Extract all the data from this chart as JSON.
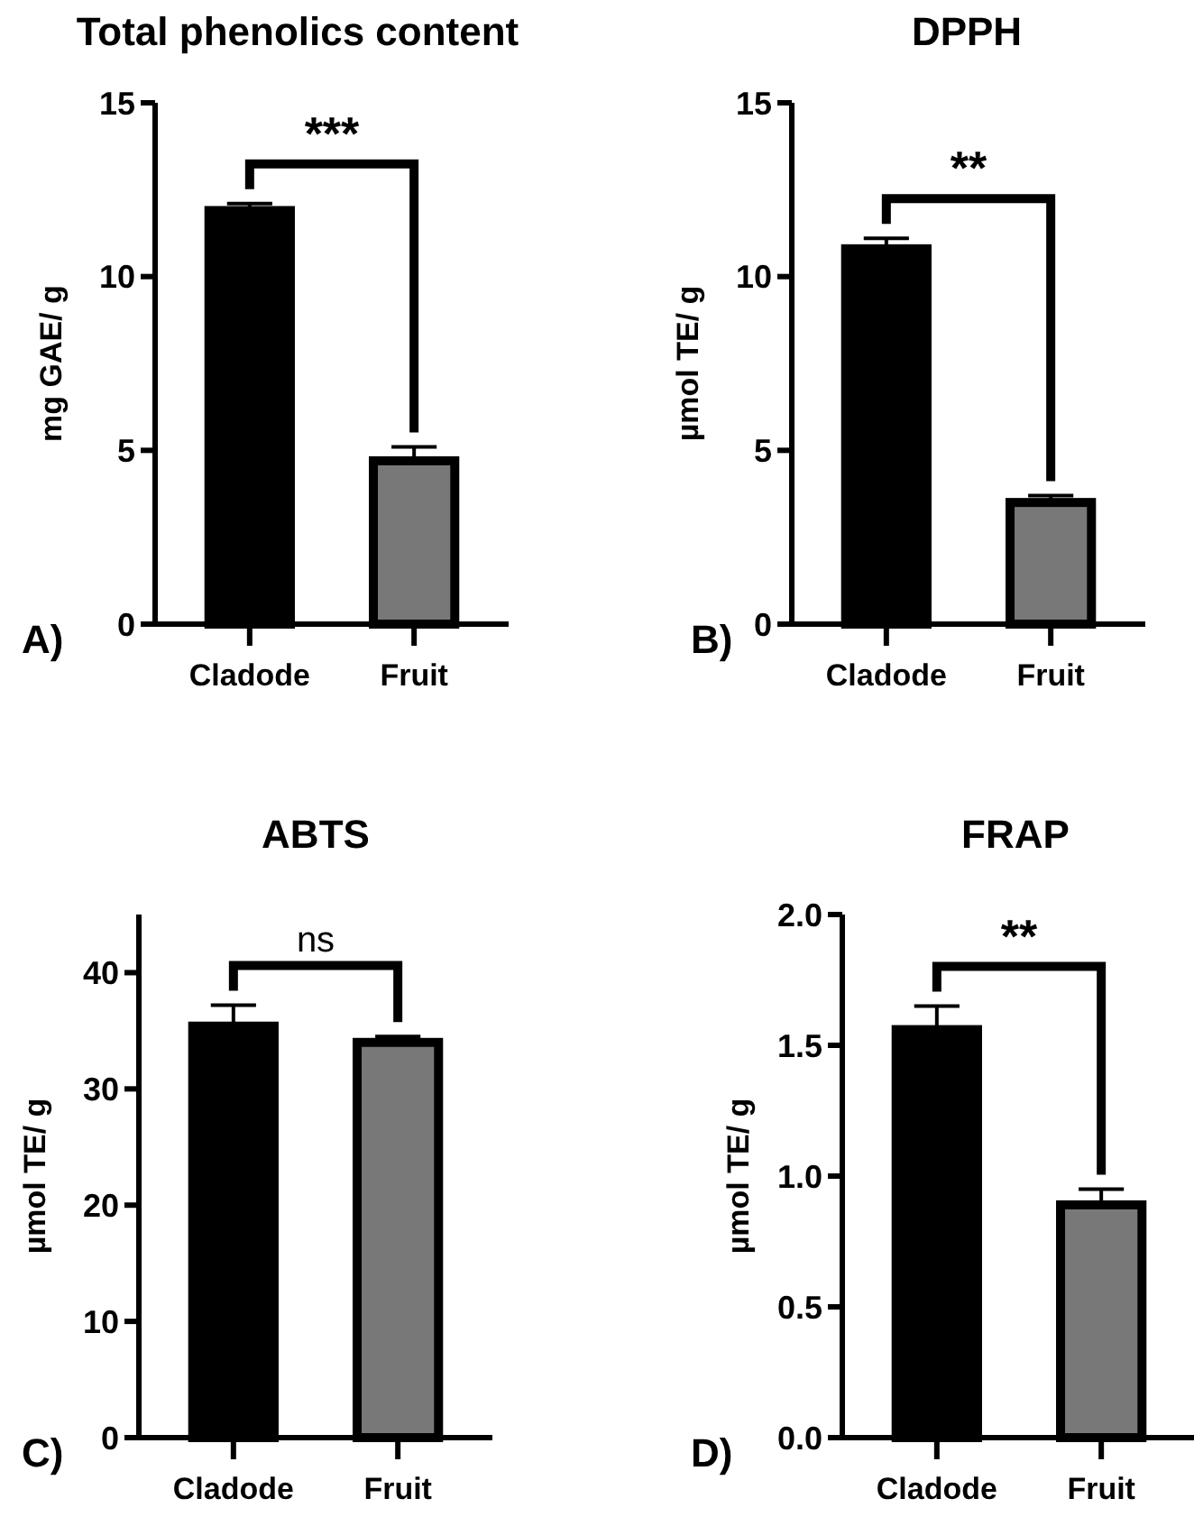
{
  "chart_data": [
    {
      "type": "bar",
      "title": "Total phenolics content",
      "ylabel": "mg GAE/ g",
      "categories": [
        "Cladode",
        "Fruit"
      ],
      "values": [
        11.9,
        4.7
      ],
      "errors": [
        0.2,
        0.4
      ],
      "colors": [
        "#000000",
        "#787878"
      ],
      "ylim": [
        0,
        15
      ],
      "yticks": [
        0,
        5,
        10,
        15
      ],
      "annotations": [
        "***",
        "A)"
      ]
    },
    {
      "type": "bar",
      "title": "DPPH",
      "ylabel": "µmol TE/ g",
      "categories": [
        "Cladode",
        "Fruit"
      ],
      "values": [
        10.8,
        3.5
      ],
      "errors": [
        0.3,
        0.2
      ],
      "colors": [
        "#000000",
        "#787878"
      ],
      "ylim": [
        0,
        15
      ],
      "yticks": [
        0,
        5,
        10,
        15
      ],
      "annotations": [
        "**",
        "B)"
      ]
    },
    {
      "type": "bar",
      "title": "ABTS",
      "ylabel": "µmol TE/ g",
      "categories": [
        "Cladode",
        "Fruit"
      ],
      "values": [
        35.4,
        34.0
      ],
      "errors": [
        1.8,
        0.5
      ],
      "colors": [
        "#000000",
        "#787878"
      ],
      "ylim": [
        0,
        45
      ],
      "yticks": [
        0,
        10,
        20,
        30,
        40
      ],
      "annotations": [
        "ns",
        "C)"
      ]
    },
    {
      "type": "bar",
      "title": "FRAP",
      "ylabel": "µmol TE/ g",
      "categories": [
        "Cladode",
        "Fruit"
      ],
      "values": [
        1.56,
        0.89
      ],
      "errors": [
        0.09,
        0.06
      ],
      "colors": [
        "#000000",
        "#787878"
      ],
      "ylim": [
        0,
        2.0
      ],
      "yticks": [
        {
          "value": 0,
          "label": "0.0"
        },
        {
          "value": 0.5,
          "label": "0.5"
        },
        {
          "value": 1,
          "label": "1.0"
        },
        {
          "value": 1.5,
          "label": "1.5"
        },
        {
          "value": 2,
          "label": "2.0"
        }
      ],
      "annotations": [
        "**",
        "D)"
      ]
    }
  ]
}
